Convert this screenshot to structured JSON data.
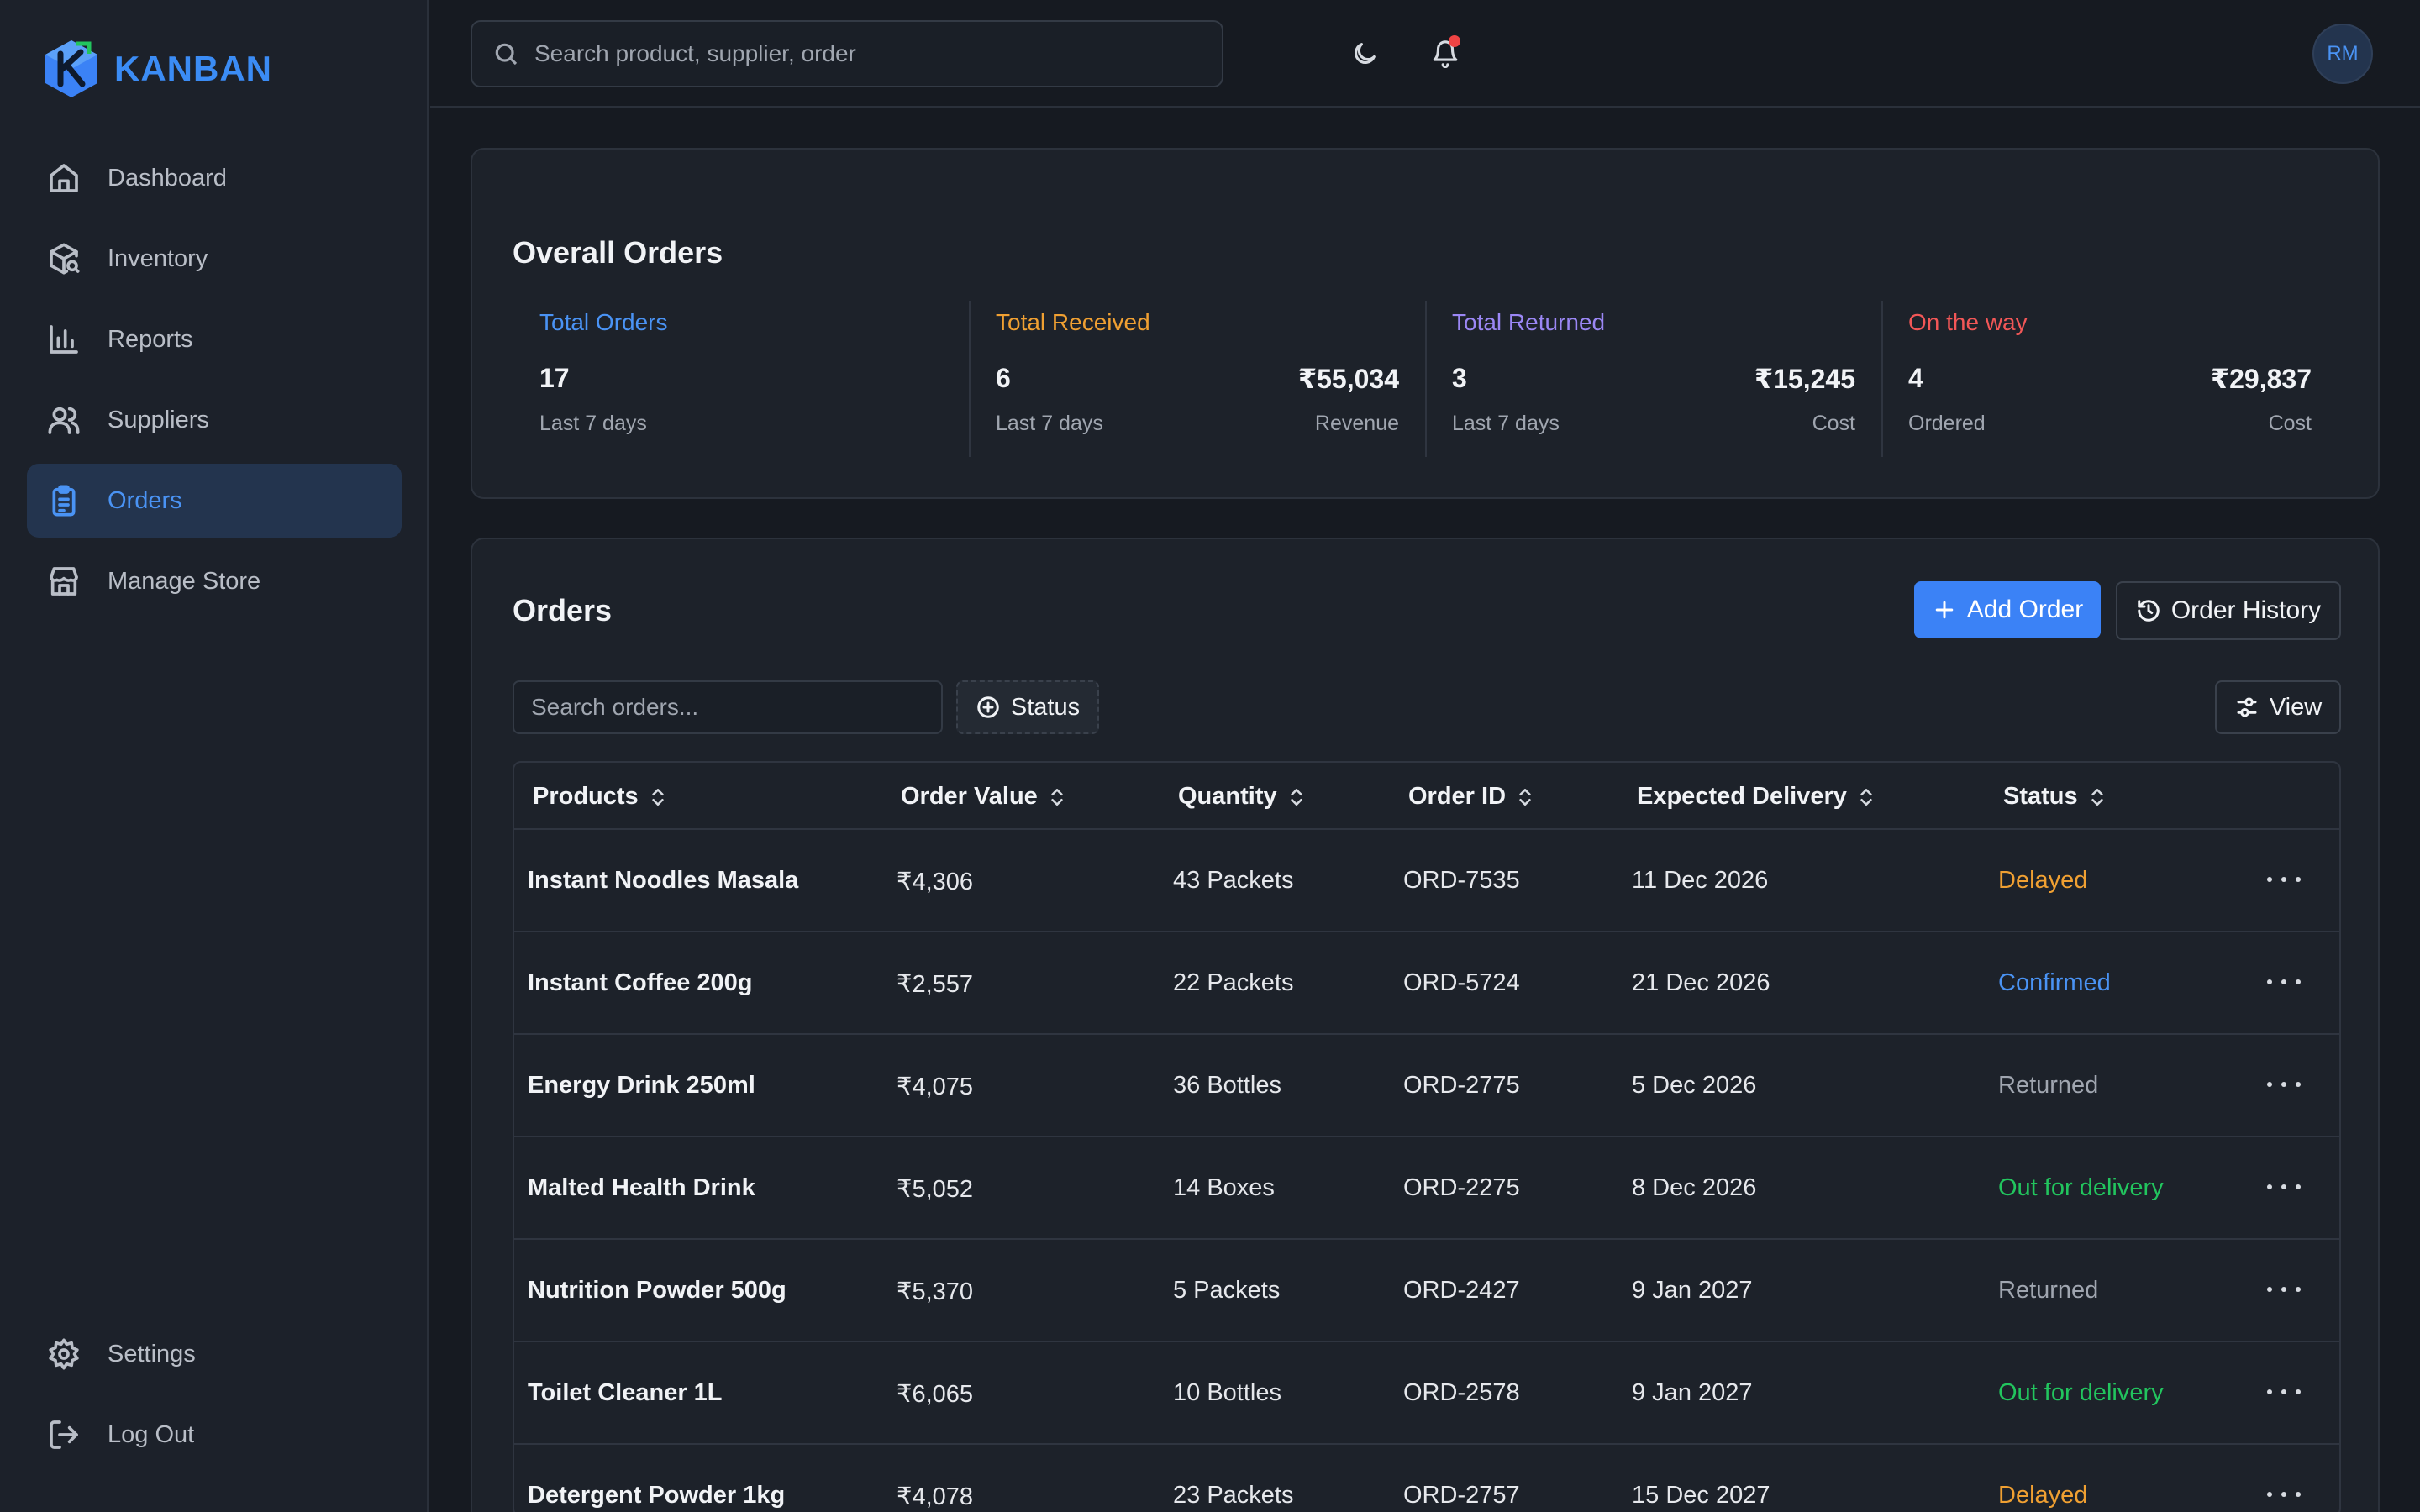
{
  "brand": {
    "name": "KANBAN"
  },
  "sidebar": {
    "items": [
      {
        "label": "Dashboard",
        "icon": "home-icon"
      },
      {
        "label": "Inventory",
        "icon": "package-search-icon"
      },
      {
        "label": "Reports",
        "icon": "bar-chart-icon"
      },
      {
        "label": "Suppliers",
        "icon": "users-icon"
      },
      {
        "label": "Orders",
        "icon": "clipboard-list-icon",
        "active": true
      },
      {
        "label": "Manage Store",
        "icon": "store-icon"
      }
    ],
    "bottom": [
      {
        "label": "Settings",
        "icon": "gear-icon"
      },
      {
        "label": "Log Out",
        "icon": "log-out-icon"
      }
    ]
  },
  "header": {
    "search_placeholder": "Search product, supplier, order",
    "avatar_initials": "RM"
  },
  "overview": {
    "title": "Overall Orders",
    "stats": [
      {
        "label": "Total Orders",
        "color": "#4a93f4",
        "count": "17",
        "count_sub": "Last 7 days",
        "amount": "",
        "amount_sub": ""
      },
      {
        "label": "Total Received",
        "color": "#f0a032",
        "count": "6",
        "count_sub": "Last 7 days",
        "amount": "₹55,034",
        "amount_sub": "Revenue"
      },
      {
        "label": "Total Returned",
        "color": "#9b87f5",
        "count": "3",
        "count_sub": "Last 7 days",
        "amount": "₹15,245",
        "amount_sub": "Cost"
      },
      {
        "label": "On the way",
        "color": "#f25757",
        "count": "4",
        "count_sub": "Ordered",
        "amount": "₹29,837",
        "amount_sub": "Cost"
      }
    ]
  },
  "orders": {
    "title": "Orders",
    "add_label": "Add Order",
    "history_label": "Order History",
    "search_placeholder": "Search orders...",
    "status_filter_label": "Status",
    "view_label": "View",
    "columns": [
      "Products",
      "Order Value",
      "Quantity",
      "Order ID",
      "Expected Delivery",
      "Status"
    ],
    "rows": [
      {
        "product": "Instant Noodles Masala",
        "value": "₹4,306",
        "qty": "43 Packets",
        "id": "ORD-7535",
        "delivery": "11 Dec 2026",
        "status": "Delayed",
        "status_color": "#f0a032"
      },
      {
        "product": "Instant Coffee 200g",
        "value": "₹2,557",
        "qty": "22 Packets",
        "id": "ORD-5724",
        "delivery": "21 Dec 2026",
        "status": "Confirmed",
        "status_color": "#4a93f4"
      },
      {
        "product": "Energy Drink 250ml",
        "value": "₹4,075",
        "qty": "36 Bottles",
        "id": "ORD-2775",
        "delivery": "5 Dec 2026",
        "status": "Returned",
        "status_color": "#a0a6b0"
      },
      {
        "product": "Malted Health Drink",
        "value": "₹5,052",
        "qty": "14 Boxes",
        "id": "ORD-2275",
        "delivery": "8 Dec 2026",
        "status": "Out for delivery",
        "status_color": "#22c55e"
      },
      {
        "product": "Nutrition Powder 500g",
        "value": "₹5,370",
        "qty": "5 Packets",
        "id": "ORD-2427",
        "delivery": "9 Jan 2027",
        "status": "Returned",
        "status_color": "#a0a6b0"
      },
      {
        "product": "Toilet Cleaner 1L",
        "value": "₹6,065",
        "qty": "10 Bottles",
        "id": "ORD-2578",
        "delivery": "9 Jan 2027",
        "status": "Out for delivery",
        "status_color": "#22c55e"
      },
      {
        "product": "Detergent Powder 1kg",
        "value": "₹4,078",
        "qty": "23 Packets",
        "id": "ORD-2757",
        "delivery": "15 Dec 2027",
        "status": "Delayed",
        "status_color": "#f0a032"
      }
    ]
  }
}
